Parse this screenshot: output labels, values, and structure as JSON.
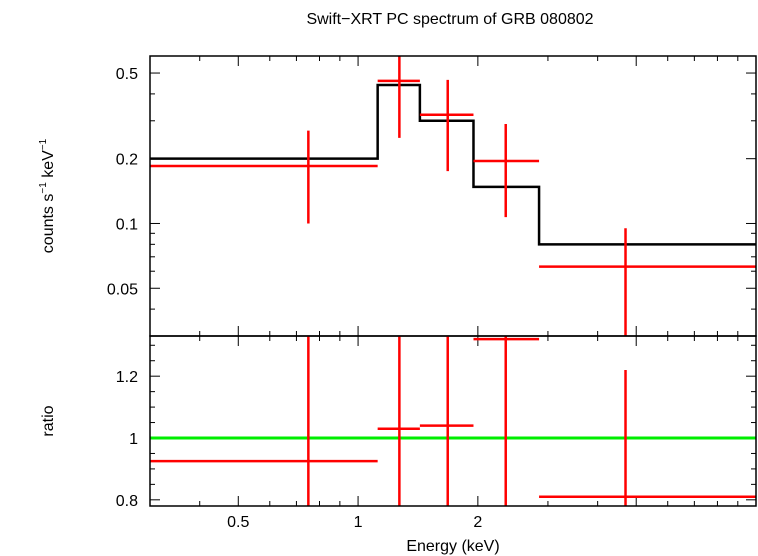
{
  "chart_data": [
    {
      "panel": "spectrum",
      "type": "scatter",
      "title": "Swift−XRT PC spectrum of GRB 080802",
      "ylabel_main": "counts s",
      "ylabel_sup1": "−1",
      "ylabel_mid": " keV",
      "ylabel_sup2": "−1",
      "xscale": "log",
      "yscale": "log",
      "xlim": [
        0.3,
        10
      ],
      "ylim": [
        0.03,
        0.6
      ],
      "yticks": [
        {
          "v": 0.5,
          "label": "0.5"
        },
        {
          "v": 0.2,
          "label": "0.2"
        },
        {
          "v": 0.1,
          "label": "0.1"
        },
        {
          "v": 0.05,
          "label": "0.05"
        }
      ],
      "data": [
        {
          "xlo": 0.3,
          "xhi": 1.12,
          "x": 0.75,
          "y": 0.185,
          "ylo": 0.1,
          "yhi": 0.27
        },
        {
          "xlo": 1.12,
          "xhi": 1.43,
          "x": 1.27,
          "y": 0.46,
          "ylo": 0.25,
          "yhi": 0.63
        },
        {
          "xlo": 1.43,
          "xhi": 1.95,
          "x": 1.68,
          "y": 0.32,
          "ylo": 0.175,
          "yhi": 0.465
        },
        {
          "xlo": 1.95,
          "xhi": 2.85,
          "x": 2.35,
          "y": 0.195,
          "ylo": 0.107,
          "yhi": 0.29
        },
        {
          "xlo": 2.85,
          "xhi": 10,
          "x": 4.7,
          "y": 0.063,
          "ylo": 0.03,
          "yhi": 0.095
        }
      ],
      "model": [
        {
          "xlo": 0.3,
          "xhi": 1.12,
          "y": 0.2
        },
        {
          "xlo": 1.12,
          "xhi": 1.43,
          "y": 0.44
        },
        {
          "xlo": 1.43,
          "xhi": 1.95,
          "y": 0.3
        },
        {
          "xlo": 1.95,
          "xhi": 2.85,
          "y": 0.148
        },
        {
          "xlo": 2.85,
          "xhi": 10,
          "y": 0.08
        }
      ],
      "data_color": "#ff0000",
      "model_color": "#000000"
    },
    {
      "panel": "ratio",
      "type": "scatter",
      "xlabel": "Energy (keV)",
      "ylabel": "ratio",
      "xscale": "log",
      "xlim": [
        0.3,
        10
      ],
      "ylim": [
        0.78,
        1.33
      ],
      "xticks": [
        {
          "v": 0.5,
          "label": "0.5"
        },
        {
          "v": 1,
          "label": "1"
        },
        {
          "v": 2,
          "label": "2"
        }
      ],
      "yticks": [
        {
          "v": 1.2,
          "label": "1.2"
        },
        {
          "v": 1,
          "label": "1"
        },
        {
          "v": 0.8,
          "label": "0.8"
        }
      ],
      "data": [
        {
          "xlo": 0.3,
          "xhi": 1.12,
          "x": 0.75,
          "y": 0.925,
          "ylo": 0.5,
          "yhi": 1.35
        },
        {
          "xlo": 1.12,
          "xhi": 1.43,
          "x": 1.27,
          "y": 1.03,
          "ylo": 0.5,
          "yhi": 1.35
        },
        {
          "xlo": 1.43,
          "xhi": 1.95,
          "x": 1.68,
          "y": 1.04,
          "ylo": 0.5,
          "yhi": 1.35
        },
        {
          "xlo": 1.95,
          "xhi": 2.85,
          "x": 2.35,
          "y": 1.32,
          "ylo": 0.5,
          "yhi": 1.35
        },
        {
          "xlo": 2.85,
          "xhi": 10,
          "x": 4.7,
          "y": 0.81,
          "ylo": 0.5,
          "yhi": 1.22
        }
      ],
      "reference_line": 1,
      "data_color": "#ff0000",
      "reference_color": "#00ee00"
    }
  ]
}
